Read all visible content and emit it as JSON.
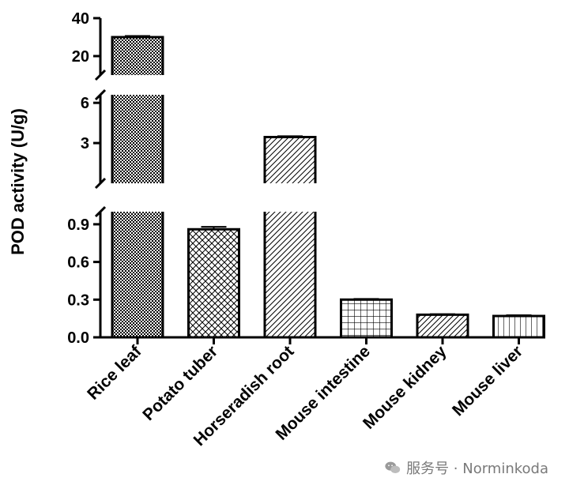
{
  "chart_data": {
    "type": "bar",
    "ylabel": "POD activity (U/g)",
    "categories": [
      "Rice leaf",
      "Potato tuber",
      "Horseradish root",
      "Mouse intestine",
      "Mouse kidney",
      "Mouse liver"
    ],
    "values": [
      30,
      0.86,
      3.45,
      0.3,
      0.18,
      0.17
    ],
    "errors": [
      0.6,
      0.02,
      0.06,
      0.006,
      0.005,
      0.006
    ],
    "patterns": [
      "checker",
      "crosshatch",
      "diagonal",
      "grid",
      "diagonal",
      "vertical"
    ],
    "y_axis_segments": [
      {
        "range": [
          0,
          1.0
        ],
        "ticks": [
          0.0,
          0.3,
          0.6,
          0.9
        ],
        "tick_labels": [
          "0.0",
          "0.3",
          "0.6",
          "0.9"
        ]
      },
      {
        "range": [
          0,
          6.6
        ],
        "ticks": [
          3,
          6
        ],
        "tick_labels": [
          "3",
          "6"
        ]
      },
      {
        "range": [
          10,
          40
        ],
        "ticks": [
          20,
          40
        ],
        "tick_labels": [
          "20",
          "40"
        ]
      }
    ],
    "grid": false,
    "colors": {
      "bar_fill": "#ffffff",
      "bar_edge": "#000000",
      "axis": "#000000"
    }
  },
  "watermark": {
    "text": "服务号 · Norminkoda",
    "icon": "wechat-icon"
  }
}
